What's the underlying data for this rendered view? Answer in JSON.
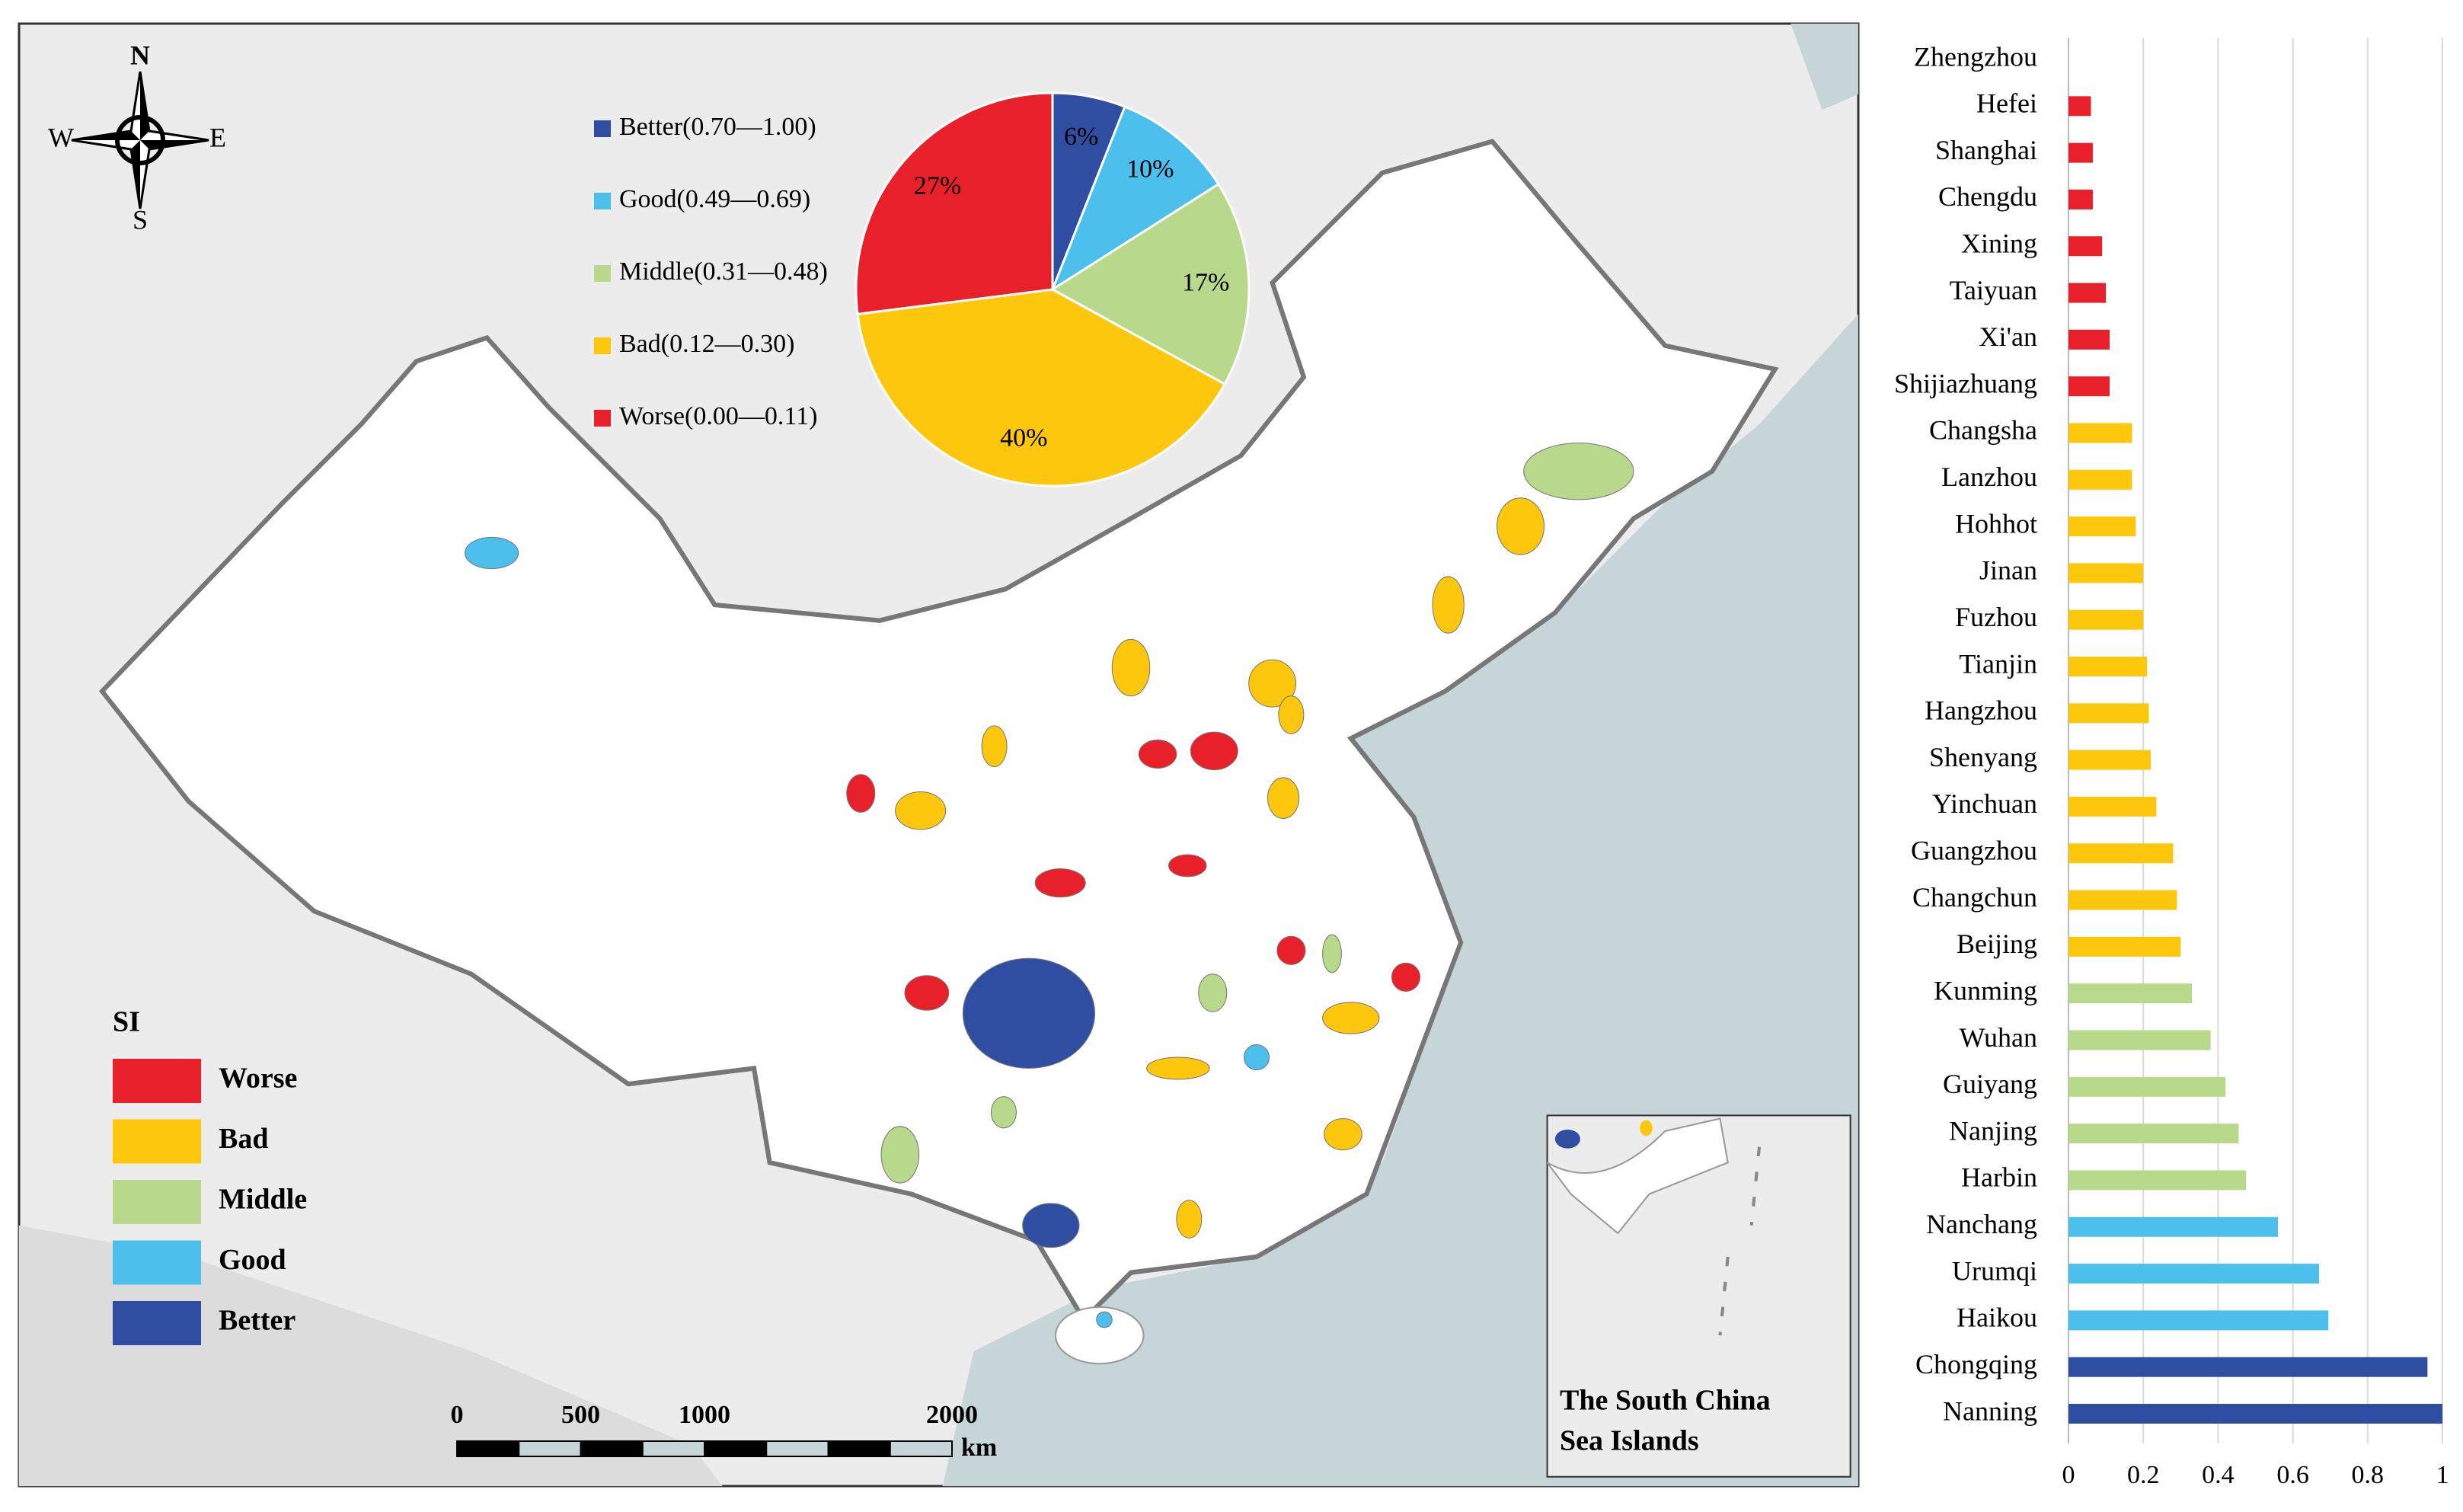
{
  "chart_data": [
    {
      "type": "pie",
      "labels": [
        "Better(0.70—1.00)",
        "Good(0.49—0.69)",
        "Middle(0.31—0.48)",
        "Bad(0.12—0.30)",
        "Worse(0.00—0.11)"
      ],
      "values": [
        6,
        10,
        17,
        40,
        27
      ],
      "value_labels": [
        "6%",
        "10%",
        "17%",
        "40%",
        "27%"
      ],
      "colors": [
        "#2f4ea2",
        "#4dbfec",
        "#b8d98b",
        "#fdc70d",
        "#e8202a"
      ]
    },
    {
      "type": "bar",
      "orientation": "horizontal",
      "categories": [
        "Zhengzhou",
        "Hefei",
        "Shanghai",
        "Chengdu",
        "Xining",
        "Taiyuan",
        "Xi'an",
        "Shijiazhuang",
        "Changsha",
        "Lanzhou",
        "Hohhot",
        "Jinan",
        "Fuzhou",
        "Tianjin",
        "Hangzhou",
        "Shenyang",
        "Yinchuan",
        "Guangzhou",
        "Changchun",
        "Beijing",
        "Kunming",
        "Wuhan",
        "Guiyang",
        "Nanjing",
        "Harbin",
        "Nanchang",
        "Urumqi",
        "Haikou",
        "Chongqing",
        "Nanning"
      ],
      "values": [
        0,
        0.06,
        0.065,
        0.065,
        0.09,
        0.1,
        0.11,
        0.11,
        0.17,
        0.17,
        0.18,
        0.2,
        0.2,
        0.21,
        0.215,
        0.22,
        0.235,
        0.28,
        0.29,
        0.3,
        0.33,
        0.38,
        0.42,
        0.455,
        0.475,
        0.56,
        0.67,
        0.695,
        0.96,
        1
      ],
      "colors": [
        "#e8202a",
        "#e8202a",
        "#e8202a",
        "#e8202a",
        "#e8202a",
        "#e8202a",
        "#e8202a",
        "#e8202a",
        "#fdc70d",
        "#fdc70d",
        "#fdc70d",
        "#fdc70d",
        "#fdc70d",
        "#fdc70d",
        "#fdc70d",
        "#fdc70d",
        "#fdc70d",
        "#fdc70d",
        "#fdc70d",
        "#fdc70d",
        "#b8d98b",
        "#b8d98b",
        "#b8d98b",
        "#b8d98b",
        "#b8d98b",
        "#4dbfec",
        "#4dbfec",
        "#4dbfec",
        "#2f4ea2",
        "#2f4ea2"
      ],
      "xlim": [
        0,
        1
      ],
      "xticks": [
        0,
        0.2,
        0.4,
        0.6,
        0.8,
        1
      ],
      "grid": true
    }
  ],
  "map": {
    "compass": {
      "north": "N",
      "south": "S",
      "west": "W",
      "east": "E"
    },
    "legend": {
      "title": "SI",
      "items": [
        {
          "label": "Worse",
          "color": "#e8202a"
        },
        {
          "label": "Bad",
          "color": "#fdc70d"
        },
        {
          "label": "Middle",
          "color": "#b8d98b"
        },
        {
          "label": "Good",
          "color": "#4dbfec"
        },
        {
          "label": "Better",
          "color": "#2f4ea2"
        }
      ]
    },
    "scale": {
      "ticks": [
        0,
        500,
        1000,
        2000
      ],
      "unit": "km"
    },
    "inset": {
      "label_lines": [
        "The South China",
        "Sea Islands"
      ]
    }
  }
}
